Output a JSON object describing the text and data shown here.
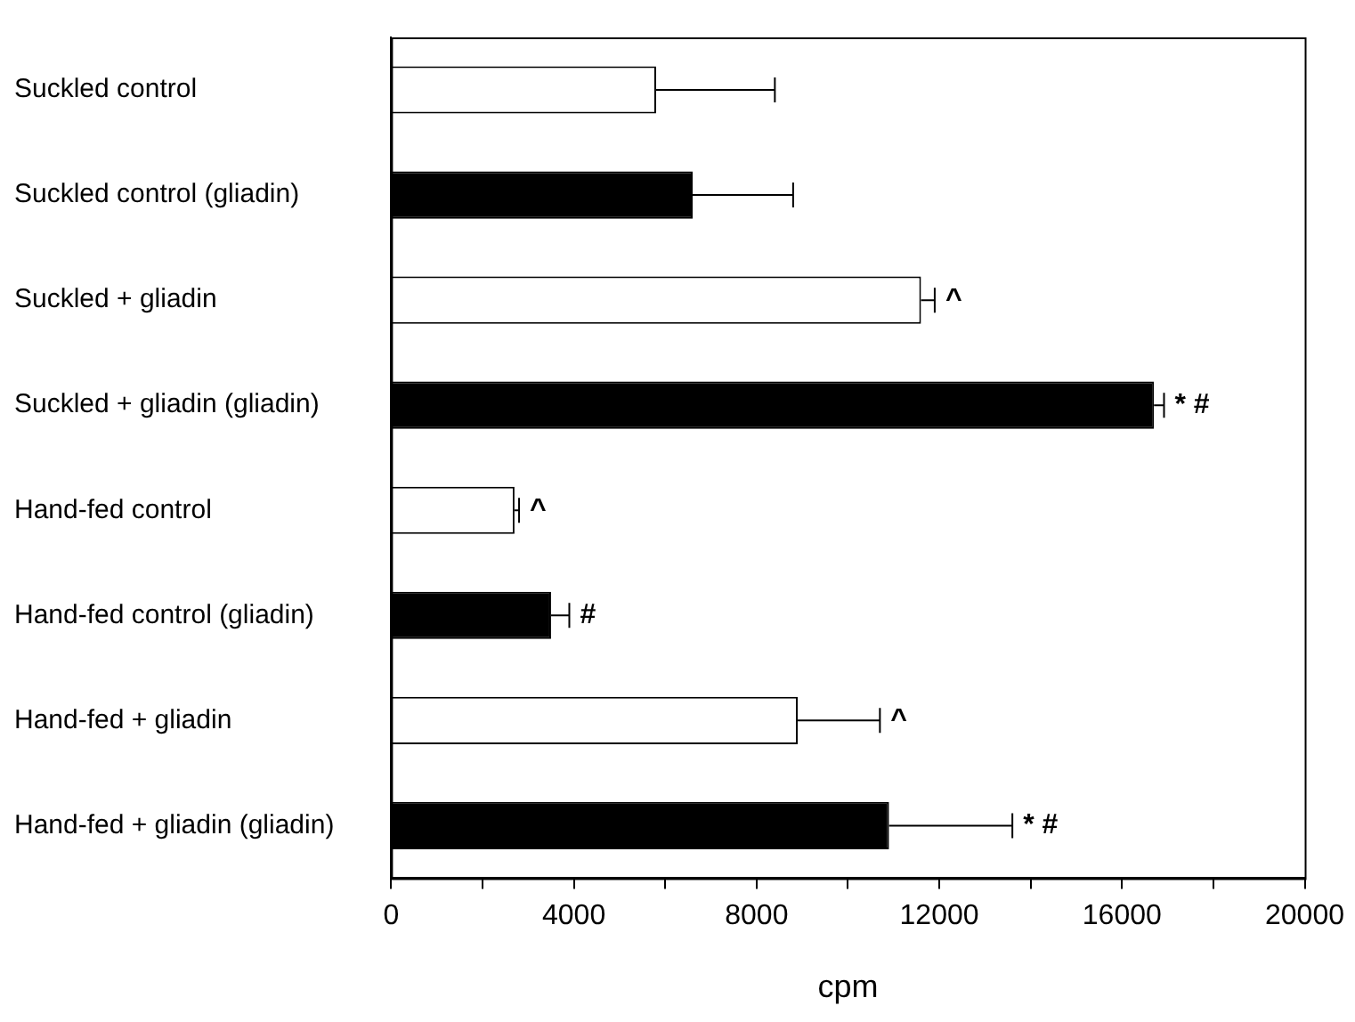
{
  "chart_data": {
    "type": "bar",
    "orientation": "horizontal",
    "xlabel": "cpm",
    "categories": [
      "Suckled control",
      "Suckled control (gliadin)",
      "Suckled + gliadin",
      "Suckled + gliadin (gliadin)",
      "Hand-fed control",
      "Hand-fed control (gliadin)",
      "Hand-fed + gliadin",
      "Hand-fed + gliadin (gliadin)"
    ],
    "values": [
      5800,
      6600,
      11600,
      16700,
      2700,
      3500,
      8900,
      10900
    ],
    "errors": [
      2600,
      2200,
      300,
      220,
      100,
      400,
      1800,
      2700
    ],
    "colors": [
      "#ffffff",
      "#000000",
      "#ffffff",
      "#000000",
      "#ffffff",
      "#000000",
      "#ffffff",
      "#000000"
    ],
    "xlim": [
      0,
      20000
    ],
    "xticks": [
      0,
      {
        "value": 2000,
        "label": null
      },
      4000,
      {
        "value": 6000,
        "label": null
      },
      8000,
      {
        "value": 10000,
        "label": null
      },
      12000,
      {
        "value": 14000,
        "label": null
      },
      16000,
      {
        "value": 18000,
        "label": null
      },
      20000
    ],
    "annotations": [
      {
        "text": "^",
        "x": 11900,
        "y": "Suckled + gliadin"
      },
      {
        "text": "* #",
        "x": 16920,
        "y": "Suckled + gliadin (gliadin)"
      },
      {
        "text": "^",
        "x": 2800,
        "y": "Hand-fed control"
      },
      {
        "text": "#",
        "x": 3900,
        "y": "Hand-fed control (gliadin)"
      },
      {
        "text": "^",
        "x": 10700,
        "y": "Hand-fed + gliadin"
      },
      {
        "text": "* #",
        "x": 13600,
        "y": "Hand-fed + gliadin (gliadin)"
      }
    ],
    "grid": false,
    "legend": false
  }
}
